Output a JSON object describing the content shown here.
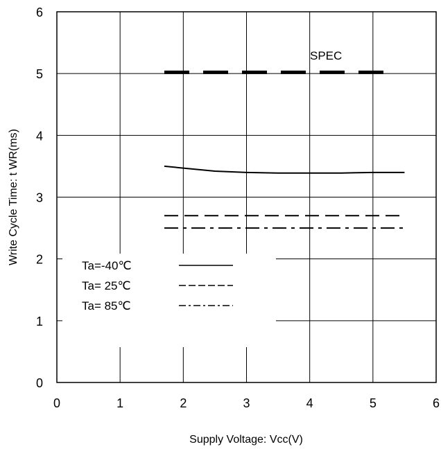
{
  "chart_data": {
    "type": "line",
    "title": "",
    "xlabel": "Supply Voltage: Vcc(V)",
    "ylabel": "Write Cycle Time: t WR(ms)",
    "xlim": [
      0,
      6
    ],
    "ylim": [
      0,
      6
    ],
    "xticks": [
      "0",
      "1",
      "2",
      "3",
      "4",
      "5",
      "6"
    ],
    "yticks": [
      "0",
      "1",
      "2",
      "3",
      "4",
      "5",
      "6"
    ],
    "grid": true,
    "legend_position": "lower-left",
    "series": [
      {
        "name": "Ta=-40℃",
        "style": "solid",
        "x": [
          1.7,
          2.0,
          2.5,
          3.0,
          3.5,
          4.0,
          4.5,
          5.0,
          5.5
        ],
        "y": [
          3.5,
          3.47,
          3.42,
          3.4,
          3.39,
          3.39,
          3.39,
          3.4,
          3.4
        ]
      },
      {
        "name": "Ta= 25℃",
        "style": "dashed",
        "x": [
          1.7,
          5.5
        ],
        "y": [
          2.7,
          2.7
        ]
      },
      {
        "name": "Ta= 85℃",
        "style": "dashdot",
        "x": [
          1.7,
          5.5
        ],
        "y": [
          2.5,
          2.5
        ]
      }
    ],
    "annotations": [
      {
        "text": "SPEC",
        "style": "thick-dashed",
        "x": [
          1.7,
          5.35
        ],
        "y": [
          5.02,
          5.02
        ]
      }
    ]
  }
}
